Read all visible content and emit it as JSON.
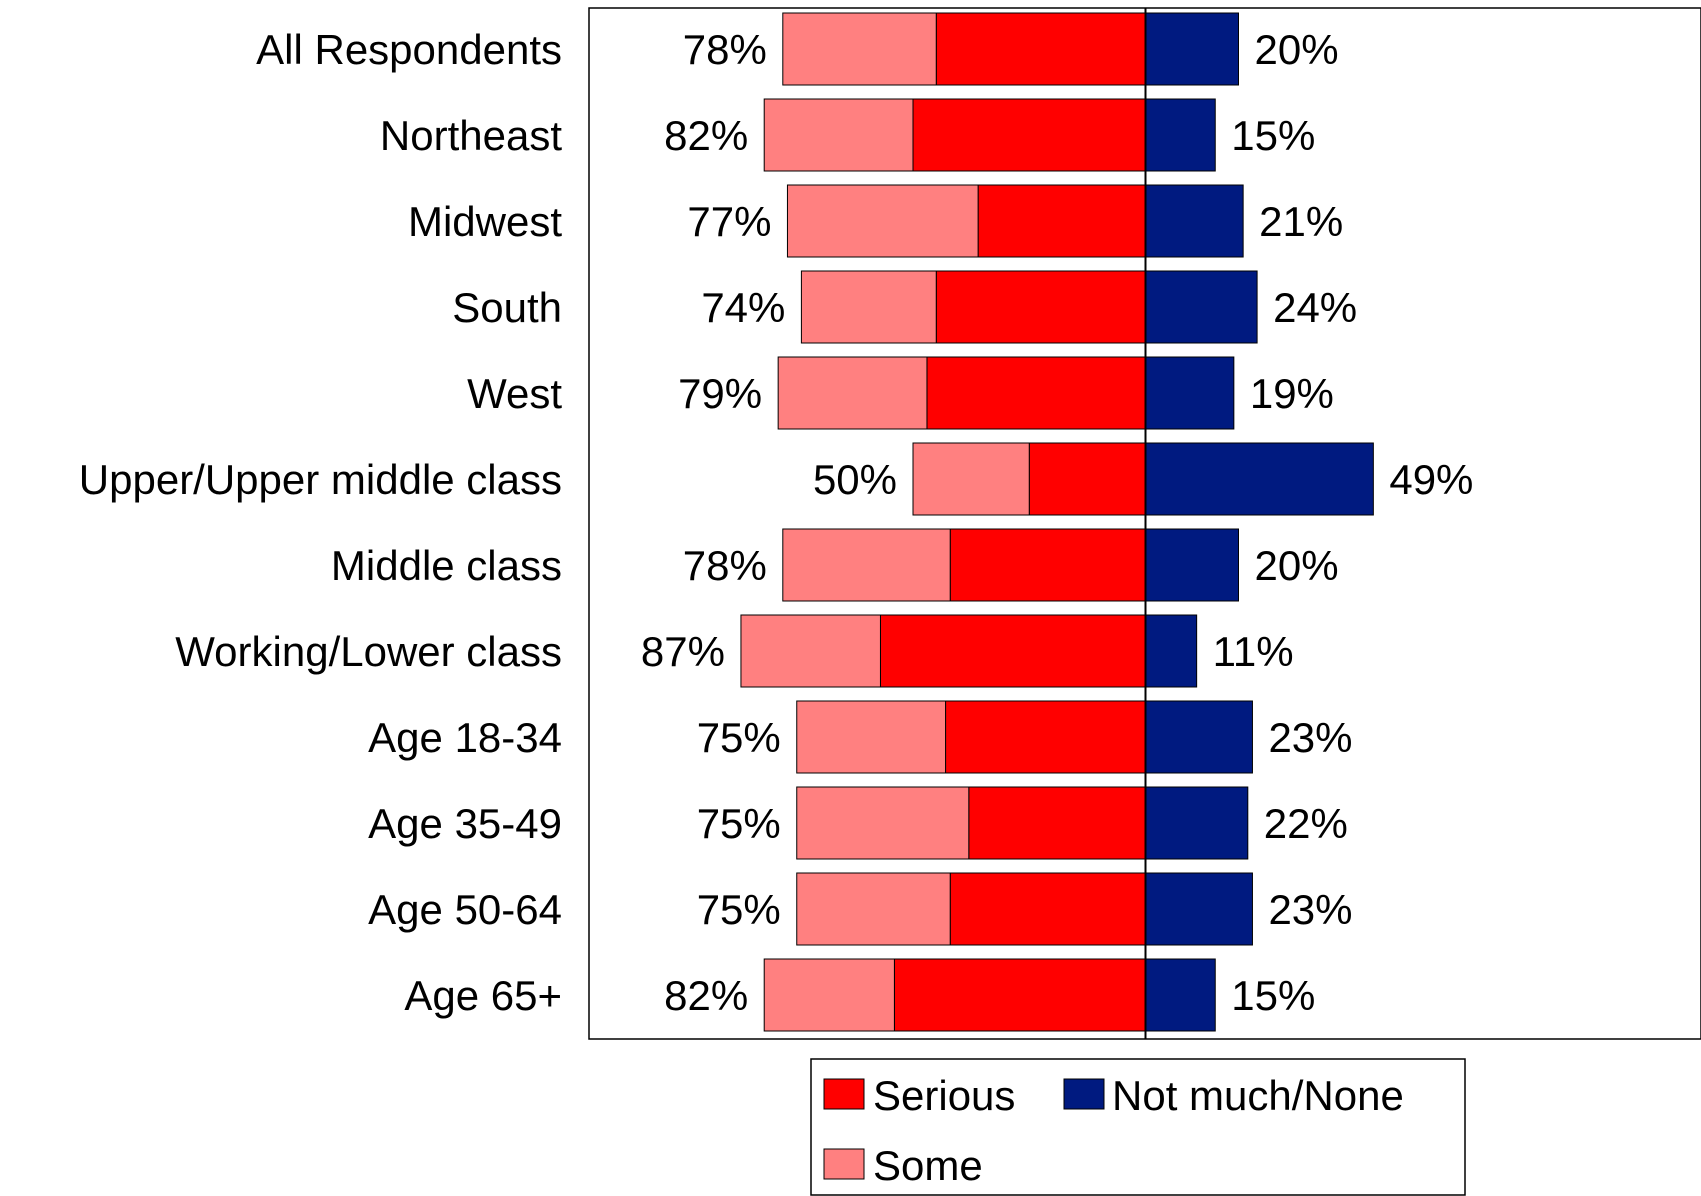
{
  "chart_data": {
    "type": "bar",
    "orientation": "horizontal-diverging",
    "categories": [
      "All Respondents",
      "Northeast",
      "Midwest",
      "South",
      "West",
      "Upper/Upper middle class",
      "Middle class",
      "Working/Lower class",
      "Age 18-34",
      "Age 35-49",
      "Age 50-64",
      "Age 65+"
    ],
    "series": [
      {
        "name": "Serious",
        "color": "#ff0000",
        "values": [
          45,
          50,
          36,
          45,
          47,
          25,
          42,
          57,
          43,
          38,
          42,
          54
        ]
      },
      {
        "name": "Some",
        "color": "#ff8080",
        "values": [
          33,
          32,
          41,
          29,
          32,
          25,
          36,
          30,
          32,
          37,
          33,
          28
        ]
      },
      {
        "name": "Not much/None",
        "color": "#001a80",
        "values": [
          20,
          15,
          21,
          24,
          19,
          49,
          20,
          11,
          23,
          22,
          23,
          15
        ]
      }
    ],
    "left_totals": [
      "78%",
      "82%",
      "77%",
      "74%",
      "79%",
      "50%",
      "78%",
      "87%",
      "75%",
      "75%",
      "75%",
      "82%"
    ],
    "right_totals": [
      "20%",
      "15%",
      "21%",
      "24%",
      "19%",
      "49%",
      "20%",
      "11%",
      "23%",
      "22%",
      "23%",
      "15%"
    ],
    "legend": [
      "Serious",
      "Not much/None",
      "Some"
    ],
    "legend_placement": "bottom-center",
    "grid": false
  }
}
